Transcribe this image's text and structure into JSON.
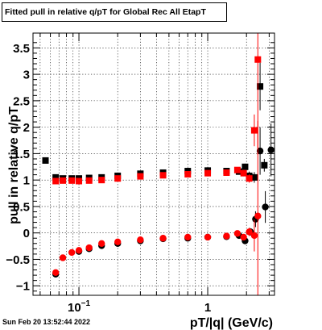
{
  "title": "Fitted pull in relative q/pT for Global Rec All EtapT",
  "timestamp": "Sun Feb 20 13:52:44 2022",
  "chart_data": {
    "type": "scatter",
    "title": "Fitted pull in relative q/pT for Global Rec All EtapT",
    "xlabel": "pT/|q| (GeV/c)",
    "ylabel": "pull in relative q/pT",
    "xscale": "log",
    "xlim": [
      0.044,
      3.3
    ],
    "ylim": [
      -1.18,
      3.78
    ],
    "grid": true,
    "legend": "none",
    "y_ticks": [
      -1,
      -0.5,
      0,
      0.5,
      1,
      1.5,
      2,
      2.5,
      3,
      3.5
    ],
    "y_tick_labels": [
      "−1",
      "−0.5",
      "0",
      "0.5",
      "1",
      "1.5",
      "2",
      "2.5",
      "3",
      "3.5"
    ],
    "x_tick_labels": [
      {
        "x": 0.1,
        "label": "10",
        "sup": "−1"
      },
      {
        "x": 1,
        "label": "1",
        "sup": ""
      }
    ],
    "series": [
      {
        "color": "#000000",
        "marker": "square",
        "x": [
          0.055,
          0.066,
          0.075,
          0.088,
          0.1,
          0.12,
          0.15,
          0.2,
          0.3,
          0.45,
          0.7,
          1.0,
          1.4,
          1.75,
          1.95,
          2.1,
          2.3,
          2.55,
          2.75
        ],
        "y": [
          1.37,
          1.05,
          1.03,
          1.03,
          1.03,
          1.04,
          1.05,
          1.08,
          1.12,
          1.14,
          1.17,
          1.18,
          1.17,
          1.16,
          1.25,
          1.08,
          1.05,
          2.77,
          1.28
        ],
        "yerr": [
          0.03,
          0.03,
          0.02,
          0.02,
          0.02,
          0.02,
          0.02,
          0.02,
          0.02,
          0.02,
          0.02,
          0.02,
          0.03,
          0.04,
          0.06,
          0.08,
          0.1,
          0.45,
          0.12
        ]
      },
      {
        "color": "#ff0000",
        "marker": "square",
        "x": [
          0.066,
          0.075,
          0.088,
          0.1,
          0.12,
          0.15,
          0.2,
          0.3,
          0.45,
          0.7,
          1.0,
          1.4,
          1.7,
          1.9,
          2.1,
          2.3,
          2.45
        ],
        "y": [
          0.98,
          0.99,
          0.99,
          0.98,
          0.99,
          1.0,
          1.03,
          1.07,
          1.09,
          1.11,
          1.13,
          1.14,
          1.19,
          1.13,
          1.03,
          1.94,
          3.28
        ],
        "yerr": [
          0.03,
          0.02,
          0.02,
          0.02,
          0.02,
          0.02,
          0.02,
          0.02,
          0.02,
          0.02,
          0.02,
          0.03,
          0.04,
          0.06,
          0.08,
          0.3,
          1.8
        ]
      },
      {
        "color": "#000000",
        "marker": "circle",
        "x": [
          0.066,
          0.1,
          0.12,
          0.15,
          0.2,
          0.3,
          0.45,
          0.7,
          1.0,
          1.4,
          1.75,
          1.95,
          2.15,
          2.35,
          2.55,
          2.8,
          3.1
        ],
        "y": [
          -0.78,
          -0.35,
          -0.3,
          -0.24,
          -0.2,
          -0.15,
          -0.11,
          -0.1,
          -0.08,
          -0.07,
          -0.05,
          -0.15,
          0.02,
          0.26,
          1.55,
          0.49,
          1.57
        ],
        "yerr": [
          0.03,
          0.02,
          0.02,
          0.02,
          0.02,
          0.02,
          0.02,
          0.02,
          0.02,
          0.02,
          0.03,
          0.05,
          0.07,
          0.15,
          0.45,
          0.3,
          0.5
        ]
      },
      {
        "color": "#ff0000",
        "marker": "circle",
        "x": [
          0.066,
          0.075,
          0.088,
          0.1,
          0.12,
          0.15,
          0.2,
          0.3,
          0.45,
          0.7,
          1.0,
          1.4,
          1.7,
          1.9,
          2.1,
          2.3,
          2.45
        ],
        "y": [
          -0.75,
          -0.47,
          -0.37,
          -0.33,
          -0.28,
          -0.2,
          -0.17,
          -0.13,
          -0.1,
          -0.08,
          -0.08,
          -0.06,
          -0.01,
          -0.08,
          0.02,
          -0.05,
          0.32
        ],
        "yerr": [
          0.03,
          0.02,
          0.02,
          0.02,
          0.02,
          0.02,
          0.02,
          0.02,
          0.02,
          0.02,
          0.02,
          0.03,
          0.04,
          0.06,
          0.08,
          0.3,
          1.8
        ]
      }
    ]
  }
}
